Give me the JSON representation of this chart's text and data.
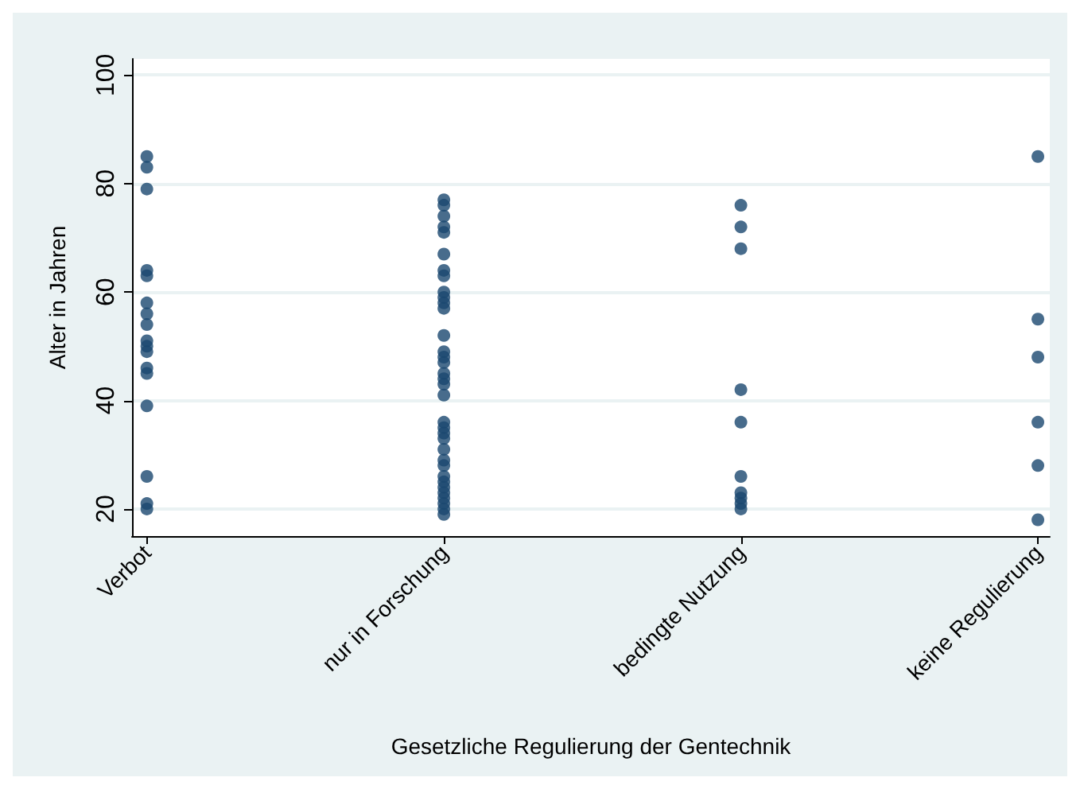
{
  "chart_data": {
    "type": "scatter",
    "xlabel": "Gesetzliche Regulierung der Gentechnik",
    "ylabel": "Alter in Jahren",
    "categories": [
      "Verbot",
      "nur in Forschung",
      "bedingte Nutzung",
      "keine Regulierung"
    ],
    "series": [
      {
        "color": "#1a476f",
        "x": [
          "Verbot",
          "Verbot",
          "Verbot",
          "Verbot",
          "Verbot",
          "Verbot",
          "Verbot",
          "Verbot",
          "Verbot",
          "Verbot",
          "Verbot",
          "Verbot",
          "Verbot",
          "Verbot",
          "Verbot",
          "Verbot",
          "Verbot",
          "nur in Forschung",
          "nur in Forschung",
          "nur in Forschung",
          "nur in Forschung",
          "nur in Forschung",
          "nur in Forschung",
          "nur in Forschung",
          "nur in Forschung",
          "nur in Forschung",
          "nur in Forschung",
          "nur in Forschung",
          "nur in Forschung",
          "nur in Forschung",
          "nur in Forschung",
          "nur in Forschung",
          "nur in Forschung",
          "nur in Forschung",
          "nur in Forschung",
          "nur in Forschung",
          "nur in Forschung",
          "nur in Forschung",
          "nur in Forschung",
          "nur in Forschung",
          "nur in Forschung",
          "nur in Forschung",
          "nur in Forschung",
          "nur in Forschung",
          "nur in Forschung",
          "nur in Forschung",
          "nur in Forschung",
          "nur in Forschung",
          "nur in Forschung",
          "nur in Forschung",
          "nur in Forschung",
          "nur in Forschung",
          "bedingte Nutzung",
          "bedingte Nutzung",
          "bedingte Nutzung",
          "bedingte Nutzung",
          "bedingte Nutzung",
          "bedingte Nutzung",
          "bedingte Nutzung",
          "bedingte Nutzung",
          "bedingte Nutzung",
          "bedingte Nutzung",
          "keine Regulierung",
          "keine Regulierung",
          "keine Regulierung",
          "keine Regulierung",
          "keine Regulierung",
          "keine Regulierung"
        ],
        "values": [
          85,
          83,
          79,
          64,
          63,
          58,
          56,
          54,
          51,
          50,
          49,
          46,
          45,
          39,
          26,
          21,
          20,
          77,
          76,
          74,
          72,
          71,
          67,
          64,
          63,
          60,
          59,
          58,
          57,
          52,
          49,
          48,
          47,
          45,
          44,
          43,
          41,
          36,
          35,
          34,
          33,
          31,
          29,
          28,
          26,
          25,
          24,
          23,
          22,
          21,
          20,
          19,
          76,
          72,
          68,
          42,
          36,
          26,
          23,
          22,
          21,
          20,
          85,
          55,
          48,
          36,
          28,
          18
        ]
      }
    ],
    "ylim": [
      15,
      103
    ],
    "yticks": [
      20,
      40,
      60,
      80,
      100
    ],
    "grid": "y",
    "marker": "circle"
  }
}
